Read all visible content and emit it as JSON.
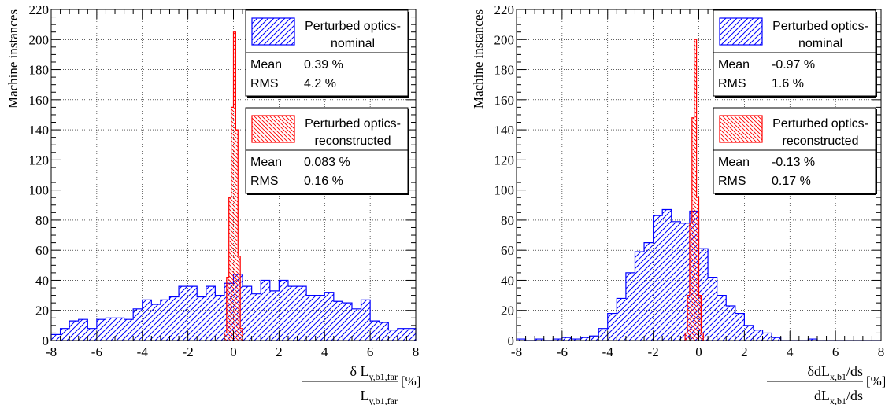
{
  "chart_data": [
    {
      "type": "histogram",
      "ylabel": "Machine instances",
      "xlabel_main": "δ L",
      "xlabel_main_sub": "y,b1,far",
      "xlabel_den": "L",
      "xlabel_den_sub": "y,b1,far",
      "xlabel_unit": "[%]",
      "xlim": [
        -8,
        8
      ],
      "ylim": [
        0,
        220
      ],
      "xticks": [
        "-8",
        "-6",
        "-4",
        "-2",
        "0",
        "2",
        "4",
        "6",
        "8"
      ],
      "yticks": [
        "0",
        "20",
        "40",
        "60",
        "80",
        "100",
        "120",
        "140",
        "160",
        "180",
        "200",
        "220"
      ],
      "grid": true,
      "series": [
        {
          "name": "Perturbed optics-nominal",
          "color": "#0000ff",
          "hatch": "diagonal-up",
          "edges": [
            -8.0,
            -7.6,
            -7.2,
            -6.8,
            -6.4,
            -6.0,
            -5.6,
            -5.2,
            -4.8,
            -4.4,
            -4.0,
            -3.6,
            -3.2,
            -2.8,
            -2.4,
            -2.0,
            -1.6,
            -1.2,
            -0.8,
            -0.4,
            0.0,
            0.4,
            0.8,
            1.2,
            1.6,
            2.0,
            2.4,
            2.8,
            3.2,
            3.6,
            4.0,
            4.4,
            4.8,
            5.2,
            5.6,
            6.0,
            6.4,
            6.8,
            7.2,
            7.6,
            8.0
          ],
          "values": [
            4,
            8,
            13,
            14,
            8,
            14,
            15,
            15,
            14,
            21,
            27,
            24,
            27,
            29,
            36,
            36,
            29,
            36,
            30,
            38,
            44,
            36,
            31,
            40,
            33,
            40,
            36,
            36,
            30,
            30,
            32,
            26,
            25,
            21,
            27,
            13,
            12,
            7,
            8,
            8
          ],
          "mean": "0.39 %",
          "rms": "4.2 %"
        },
        {
          "name": "Perturbed optics-reconstructed",
          "color": "#ff0000",
          "hatch": "diagonal-down",
          "edges": [
            -0.4,
            -0.3,
            -0.2,
            -0.1,
            0.0,
            0.1,
            0.2,
            0.3,
            0.4
          ],
          "values": [
            5,
            42,
            95,
            155,
            205,
            140,
            56,
            8
          ],
          "mean": "0.083 %",
          "rms": "0.16 %"
        }
      ]
    },
    {
      "type": "histogram",
      "ylabel": "Machine instances",
      "xlabel_main": "δdL",
      "xlabel_main_sub": "x,b1",
      "xlabel_main_tail": "/ds",
      "xlabel_den": "dL",
      "xlabel_den_sub": "x,b1",
      "xlabel_den_tail": "/ds",
      "xlabel_unit": "[%]",
      "xlim": [
        -8,
        8
      ],
      "ylim": [
        0,
        220
      ],
      "xticks": [
        "-8",
        "-6",
        "-4",
        "-2",
        "0",
        "2",
        "4",
        "6",
        "8"
      ],
      "yticks": [
        "0",
        "20",
        "40",
        "60",
        "80",
        "100",
        "120",
        "140",
        "160",
        "180",
        "200",
        "220"
      ],
      "grid": true,
      "series": [
        {
          "name": "Perturbed optics-nominal",
          "color": "#0000ff",
          "hatch": "diagonal-up",
          "edges": [
            -8.0,
            -7.6,
            -7.2,
            -6.8,
            -6.4,
            -6.0,
            -5.6,
            -5.2,
            -4.8,
            -4.4,
            -4.0,
            -3.6,
            -3.2,
            -2.8,
            -2.4,
            -2.0,
            -1.6,
            -1.2,
            -0.8,
            -0.4,
            0.0,
            0.4,
            0.8,
            1.2,
            1.6,
            2.0,
            2.4,
            2.8,
            3.2,
            3.6,
            4.0,
            4.4,
            4.8,
            5.2,
            5.6,
            6.0,
            6.4,
            6.8,
            7.2,
            7.6,
            8.0
          ],
          "values": [
            1,
            0,
            1,
            0,
            1,
            2,
            1,
            2,
            3,
            8,
            18,
            28,
            45,
            59,
            65,
            83,
            87,
            79,
            78,
            86,
            61,
            42,
            30,
            23,
            18,
            10,
            7,
            5,
            2,
            0,
            0,
            0,
            1,
            0,
            0,
            0,
            0,
            0,
            0,
            0
          ],
          "mean": "-0.97 %",
          "rms": "1.6 %"
        },
        {
          "name": "Perturbed optics-reconstructed",
          "color": "#ff0000",
          "hatch": "diagonal-down",
          "edges": [
            -0.6,
            -0.5,
            -0.4,
            -0.3,
            -0.2,
            -0.1,
            0.0,
            0.1,
            0.2
          ],
          "values": [
            5,
            30,
            78,
            148,
            200,
            95,
            30,
            5
          ],
          "mean": "-0.13 %",
          "rms": "0.17 %"
        }
      ]
    }
  ],
  "stats_labels": {
    "mean": "Mean",
    "rms": "RMS"
  },
  "legend_names": [
    [
      "Perturbed optics-",
      "nominal"
    ],
    [
      "Perturbed optics-",
      "reconstructed"
    ]
  ]
}
